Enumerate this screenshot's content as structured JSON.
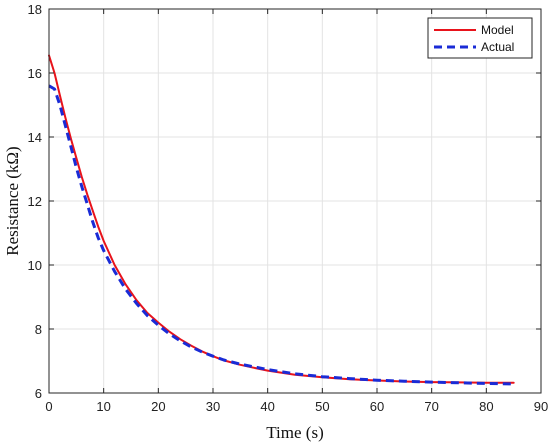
{
  "chart_data": {
    "type": "line",
    "title": "",
    "xlabel": "Time (s)",
    "ylabel": "Resistance (kΩ)",
    "xlim": [
      0,
      90
    ],
    "ylim": [
      6,
      18
    ],
    "xticks": [
      0,
      10,
      20,
      30,
      40,
      50,
      60,
      70,
      80,
      90
    ],
    "yticks": [
      6,
      8,
      10,
      12,
      14,
      16,
      18
    ],
    "grid": true,
    "legend_position": "top-right",
    "series": [
      {
        "name": "Model",
        "color": "#e8131b",
        "style": "solid",
        "x": [
          0,
          1,
          2,
          3,
          4,
          5,
          6,
          7,
          8,
          9,
          10,
          12,
          14,
          16,
          18,
          20,
          22,
          24,
          26,
          28,
          30,
          32,
          35,
          38,
          40,
          45,
          50,
          55,
          60,
          65,
          70,
          75,
          80,
          85
        ],
        "y": [
          16.55,
          16.0,
          15.3,
          14.6,
          13.95,
          13.35,
          12.75,
          12.2,
          11.7,
          11.2,
          10.75,
          10.0,
          9.4,
          8.9,
          8.5,
          8.2,
          7.92,
          7.68,
          7.48,
          7.3,
          7.15,
          7.02,
          6.88,
          6.77,
          6.7,
          6.57,
          6.49,
          6.43,
          6.39,
          6.36,
          6.34,
          6.33,
          6.32,
          6.32
        ]
      },
      {
        "name": "Actual",
        "color": "#1a2bd6",
        "style": "dashed",
        "x": [
          0,
          1,
          2,
          3,
          4,
          5,
          6,
          7,
          8,
          9,
          10,
          12,
          14,
          16,
          18,
          20,
          22,
          24,
          26,
          28,
          30,
          32,
          35,
          38,
          40,
          45,
          50,
          55,
          60,
          65,
          70,
          75,
          80,
          85
        ],
        "y": [
          15.6,
          15.5,
          15.0,
          14.35,
          13.7,
          13.05,
          12.45,
          11.9,
          11.35,
          10.85,
          10.45,
          9.8,
          9.25,
          8.8,
          8.42,
          8.12,
          7.85,
          7.63,
          7.44,
          7.28,
          7.15,
          7.03,
          6.9,
          6.8,
          6.73,
          6.6,
          6.51,
          6.45,
          6.4,
          6.37,
          6.34,
          6.32,
          6.3,
          6.28
        ]
      }
    ]
  }
}
